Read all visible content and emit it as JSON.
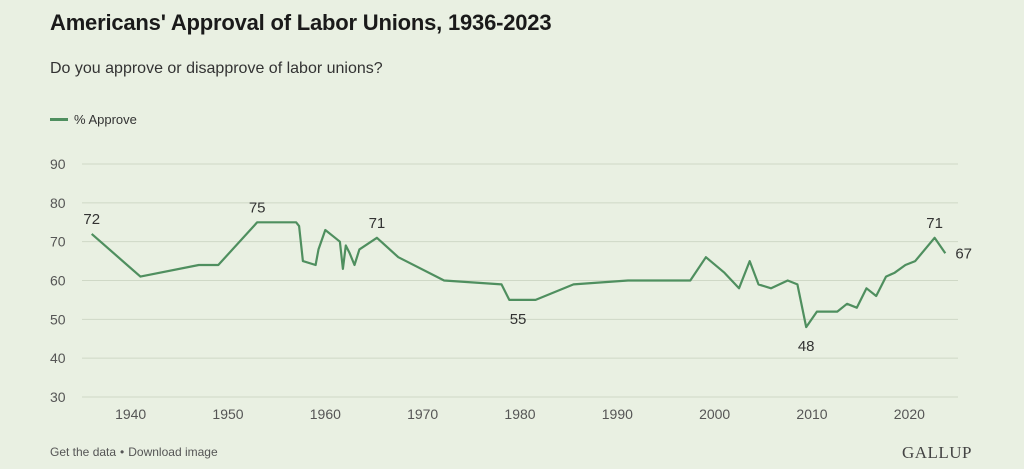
{
  "header": {
    "title": "Americans' Approval of Labor Unions, 1936-2023",
    "subtitle": "Do you approve or disapprove of labor unions?"
  },
  "legend": {
    "label": "% Approve"
  },
  "footer": {
    "get_data": "Get the data",
    "separator": "•",
    "download": "Download image"
  },
  "brand": {
    "name": "GALLUP"
  },
  "colors": {
    "line": "#4f8f5f",
    "grid": "#cfd8c6",
    "background": "#e9f0e2"
  },
  "chart_data": {
    "type": "line",
    "title": "Americans' Approval of Labor Unions, 1936-2023",
    "subtitle": "Do you approve or disapprove of labor unions?",
    "xlabel": "",
    "ylabel": "",
    "xlim": [
      1935,
      2025
    ],
    "ylim": [
      30,
      90
    ],
    "x_ticks": [
      1940,
      1950,
      1960,
      1970,
      1980,
      1990,
      2000,
      2010,
      2020
    ],
    "y_ticks": [
      30,
      40,
      50,
      60,
      70,
      80,
      90
    ],
    "grid": "horizontal",
    "legend_position": "top-left",
    "series": [
      {
        "name": "% Approve",
        "color": "#4f8f5f",
        "points": [
          [
            1936,
            72
          ],
          [
            1941,
            61
          ],
          [
            1947,
            64
          ],
          [
            1949,
            64
          ],
          [
            1953,
            75
          ],
          [
            1957,
            75
          ],
          [
            1957.3,
            74
          ],
          [
            1957.7,
            65
          ],
          [
            1959,
            64
          ],
          [
            1959.3,
            68
          ],
          [
            1960,
            73
          ],
          [
            1961,
            71
          ],
          [
            1961.5,
            70
          ],
          [
            1961.8,
            63
          ],
          [
            1962.1,
            69
          ],
          [
            1962.5,
            67
          ],
          [
            1963,
            64
          ],
          [
            1963.5,
            68
          ],
          [
            1965.3,
            71
          ],
          [
            1967.5,
            66
          ],
          [
            1972.2,
            60
          ],
          [
            1978.1,
            59
          ],
          [
            1978.9,
            55
          ],
          [
            1981.6,
            55
          ],
          [
            1985.5,
            59
          ],
          [
            1991.1,
            60
          ],
          [
            1997.5,
            60
          ],
          [
            1999.1,
            66
          ],
          [
            2001,
            62
          ],
          [
            2002.5,
            58
          ],
          [
            2003.6,
            65
          ],
          [
            2004.5,
            59
          ],
          [
            2005.8,
            58
          ],
          [
            2007.5,
            60
          ],
          [
            2008.5,
            59
          ],
          [
            2009.4,
            48
          ],
          [
            2010.5,
            52
          ],
          [
            2012.6,
            52
          ],
          [
            2013.6,
            54
          ],
          [
            2014.6,
            53
          ],
          [
            2015.6,
            58
          ],
          [
            2016.6,
            56
          ],
          [
            2017.6,
            61
          ],
          [
            2018.5,
            62
          ],
          [
            2019.6,
            64
          ],
          [
            2020.6,
            65
          ],
          [
            2022.6,
            71
          ],
          [
            2023.7,
            67
          ]
        ],
        "data_labels": [
          {
            "x": 1936,
            "y": 72,
            "text": "72",
            "position": "above"
          },
          {
            "x": 1953,
            "y": 75,
            "text": "75",
            "position": "above"
          },
          {
            "x": 1965.3,
            "y": 71,
            "text": "71",
            "position": "above"
          },
          {
            "x": 1979.8,
            "y": 55,
            "text": "55",
            "position": "below"
          },
          {
            "x": 2009.4,
            "y": 48,
            "text": "48",
            "position": "below"
          },
          {
            "x": 2022.6,
            "y": 71,
            "text": "71",
            "position": "above"
          },
          {
            "x": 2023.7,
            "y": 67,
            "text": "67",
            "position": "right"
          }
        ]
      }
    ]
  }
}
